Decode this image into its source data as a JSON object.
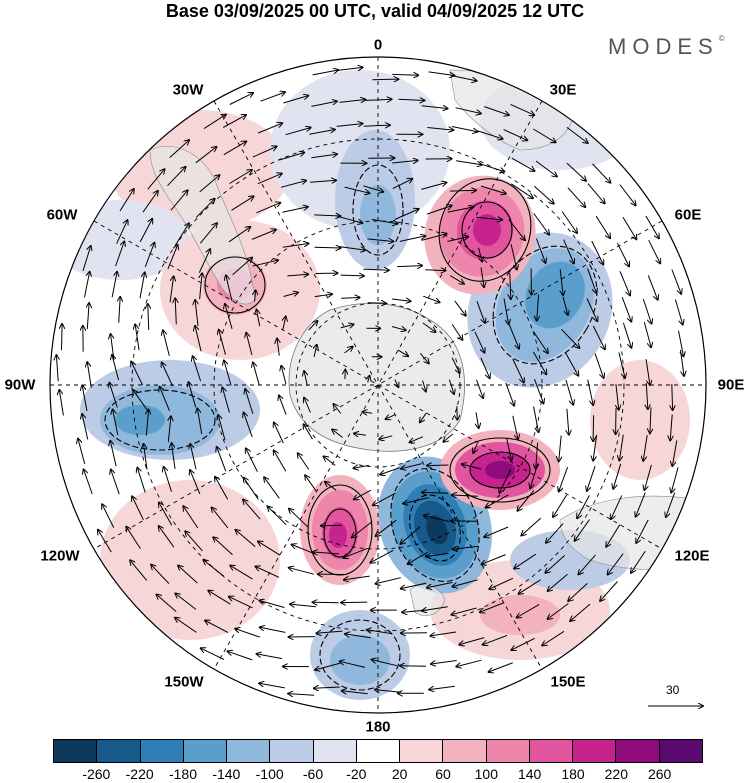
{
  "title": "Base 03/09/2025 00 UTC, valid 04/09/2025 12 UTC",
  "brand": "MODES",
  "brand_mark": "©",
  "longitude_labels": [
    "0",
    "30E",
    "60E",
    "90E",
    "120E",
    "150E",
    "180",
    "150W",
    "120W",
    "90W",
    "60W",
    "30W"
  ],
  "vector_scale_label": "30",
  "colorbar": {
    "ticks": [
      "-260",
      "-220",
      "-180",
      "-140",
      "-100",
      "-60",
      "-20",
      "20",
      "60",
      "100",
      "140",
      "180",
      "220",
      "260"
    ],
    "colors": [
      "#0d3a5c",
      "#155a8a",
      "#2f7fb6",
      "#5a9fcb",
      "#8fb8dc",
      "#bccbe6",
      "#e1e3f1",
      "#ffffff",
      "#f7d6d8",
      "#f2b3bf",
      "#ee86ac",
      "#e1559f",
      "#c7238f",
      "#8f0b7d",
      "#5a0a6e"
    ]
  }
}
